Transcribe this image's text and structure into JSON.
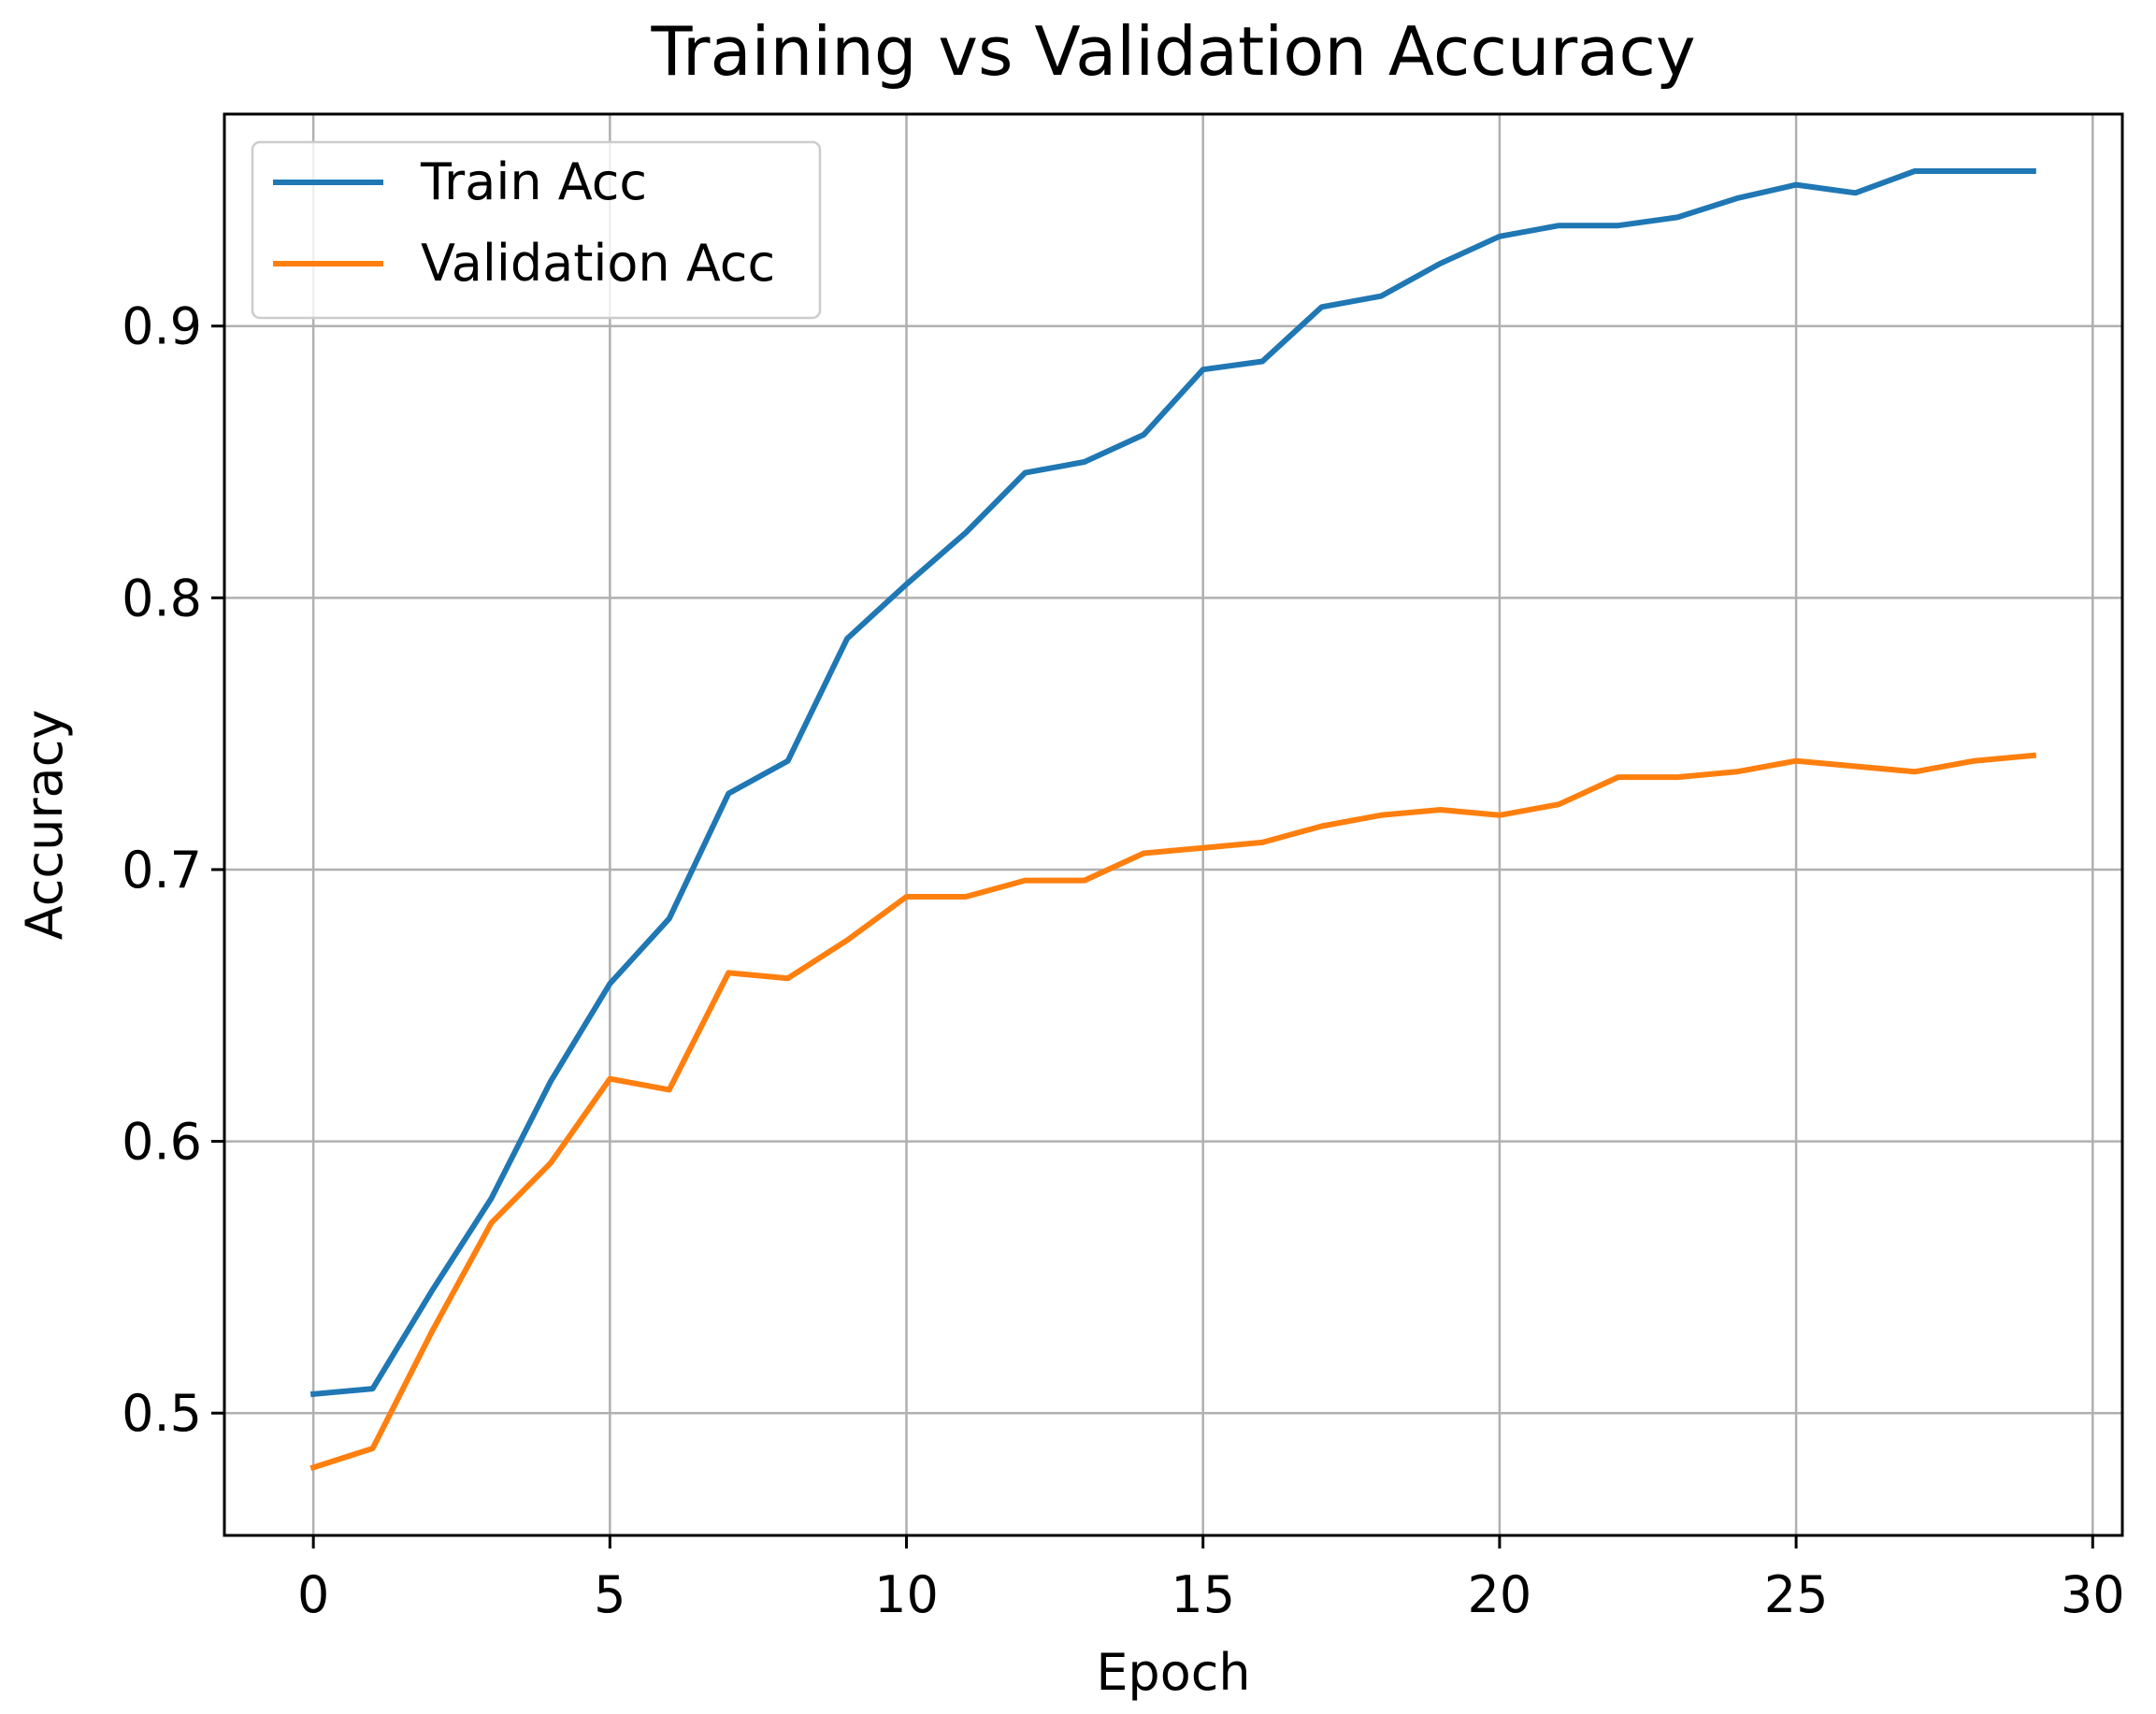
{
  "chart_data": {
    "type": "line",
    "title": "Training vs Validation Accuracy",
    "xlabel": "Epoch",
    "ylabel": "Accuracy",
    "xlim": [
      -1.5,
      30.5
    ],
    "ylim": [
      0.455,
      0.978
    ],
    "xticks": [
      0,
      5,
      10,
      15,
      20,
      25,
      30
    ],
    "yticks": [
      0.5,
      0.6,
      0.7,
      0.8,
      0.9
    ],
    "ytick_labels": [
      "0.5",
      "0.6",
      "0.7",
      "0.8",
      "0.9"
    ],
    "grid": true,
    "legend_position": "top-left",
    "x": [
      0,
      1,
      2,
      3,
      4,
      5,
      6,
      7,
      8,
      9,
      10,
      11,
      12,
      13,
      14,
      15,
      16,
      17,
      18,
      19,
      20,
      21,
      22,
      23,
      24,
      25,
      26,
      27,
      28,
      29
    ],
    "series": [
      {
        "name": "Train Acc",
        "color": "#1f77b4",
        "values": [
          0.507,
          0.509,
          0.545,
          0.579,
          0.622,
          0.658,
          0.682,
          0.728,
          0.74,
          0.785,
          0.805,
          0.824,
          0.846,
          0.85,
          0.86,
          0.884,
          0.887,
          0.907,
          0.911,
          0.923,
          0.933,
          0.937,
          0.937,
          0.94,
          0.947,
          0.952,
          0.949,
          0.957,
          0.957,
          0.957
        ]
      },
      {
        "name": "Validation Acc",
        "color": "#ff7f0e",
        "values": [
          0.48,
          0.487,
          0.53,
          0.57,
          0.592,
          0.623,
          0.619,
          0.662,
          0.66,
          0.674,
          0.69,
          0.69,
          0.696,
          0.696,
          0.706,
          0.708,
          0.71,
          0.716,
          0.72,
          0.722,
          0.72,
          0.724,
          0.734,
          0.734,
          0.736,
          0.74,
          0.738,
          0.736,
          0.74,
          0.742
        ]
      }
    ]
  }
}
